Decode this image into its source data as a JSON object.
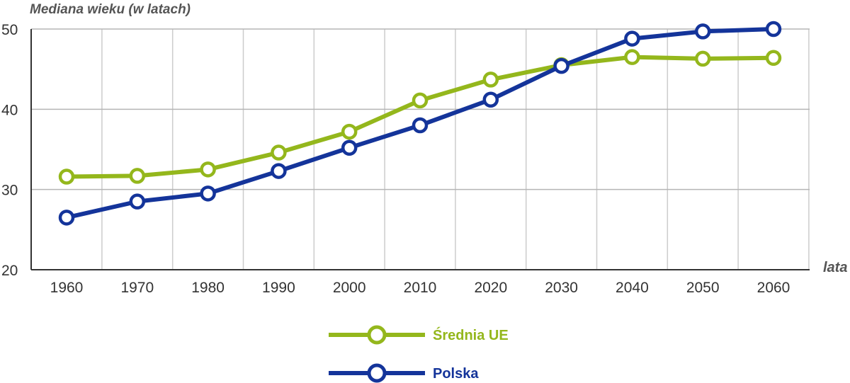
{
  "chart_data": {
    "type": "line",
    "title": "",
    "ylabel": "Mediana wieku (w latach)",
    "xlabel": "lata",
    "x": [
      "1960",
      "1970",
      "1980",
      "1990",
      "2000",
      "2010",
      "2020",
      "2030",
      "2040",
      "2050",
      "2060"
    ],
    "ylim": [
      20,
      50
    ],
    "yticks": [
      "20",
      "30",
      "40",
      "50"
    ],
    "grid": true,
    "legend_position": "bottom-center",
    "series": [
      {
        "name": "Średnia UE",
        "color": "#94b71c",
        "values": [
          31.6,
          31.7,
          32.5,
          34.6,
          37.2,
          41.1,
          43.7,
          45.5,
          46.5,
          46.3,
          46.4
        ]
      },
      {
        "name": "Polska",
        "color": "#14349a",
        "values": [
          26.5,
          28.5,
          29.5,
          32.3,
          35.2,
          38.0,
          41.2,
          45.4,
          48.8,
          49.7,
          50.0
        ]
      }
    ]
  }
}
